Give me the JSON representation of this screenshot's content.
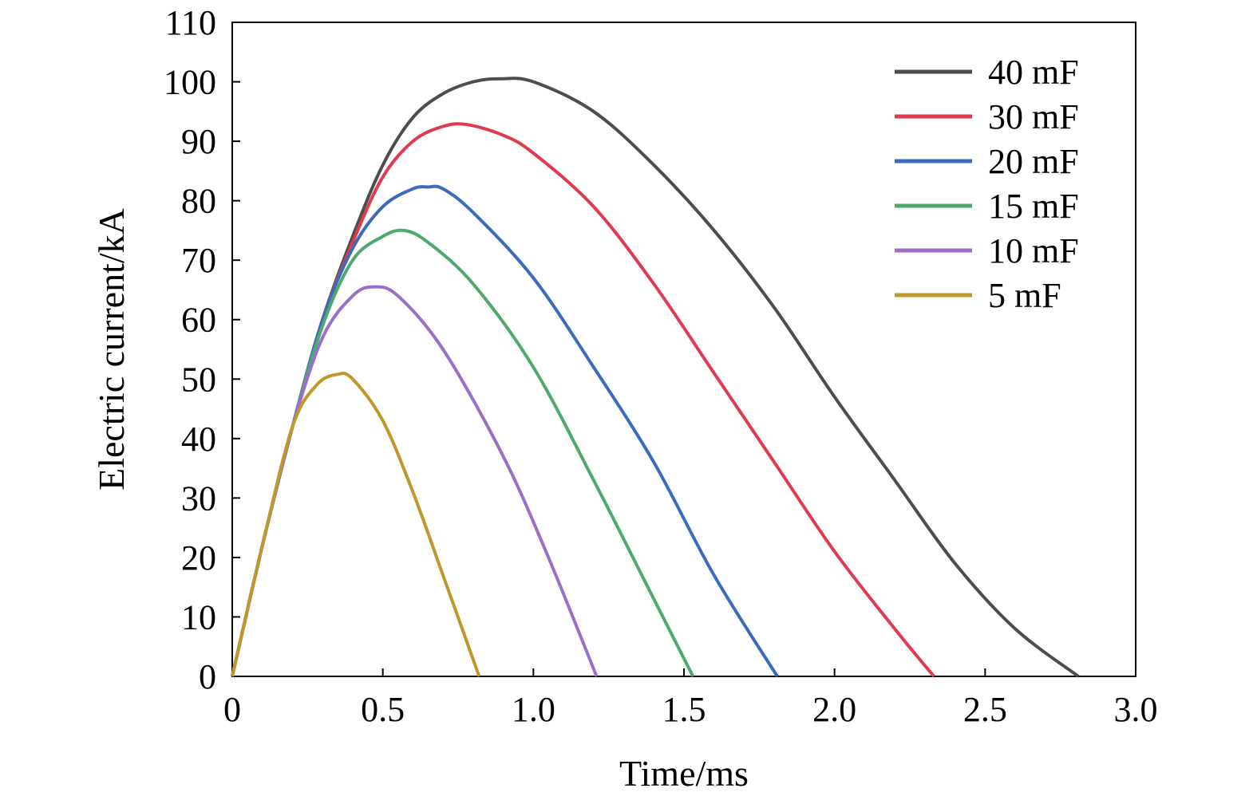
{
  "chart_data": {
    "type": "line",
    "xlabel": "Time/ms",
    "ylabel": "Electric current/kA",
    "xlim": [
      0,
      3.0
    ],
    "ylim": [
      0,
      110
    ],
    "xticks": [
      0,
      0.5,
      1.0,
      1.5,
      2.0,
      2.5,
      3.0
    ],
    "xtick_labels": [
      "0",
      "0.5",
      "1.0",
      "1.5",
      "2.0",
      "2.5",
      "3.0"
    ],
    "yticks": [
      0,
      10,
      20,
      30,
      40,
      50,
      60,
      70,
      80,
      90,
      100,
      110
    ],
    "ytick_labels": [
      "0",
      "10",
      "20",
      "30",
      "40",
      "50",
      "60",
      "70",
      "80",
      "90",
      "100",
      "110"
    ],
    "grid": false,
    "legend_position": "top-right",
    "series": [
      {
        "name": "40 mF",
        "color": "#4d4d4f",
        "points": [
          [
            0,
            0
          ],
          [
            0.1,
            22
          ],
          [
            0.2,
            42
          ],
          [
            0.3,
            60
          ],
          [
            0.4,
            74
          ],
          [
            0.5,
            86
          ],
          [
            0.6,
            94
          ],
          [
            0.7,
            98
          ],
          [
            0.8,
            100
          ],
          [
            0.89,
            100.5
          ],
          [
            1.0,
            100
          ],
          [
            1.2,
            95
          ],
          [
            1.4,
            86
          ],
          [
            1.6,
            75
          ],
          [
            1.8,
            62
          ],
          [
            2.0,
            47
          ],
          [
            2.2,
            33
          ],
          [
            2.4,
            19
          ],
          [
            2.6,
            8
          ],
          [
            2.81,
            0
          ]
        ]
      },
      {
        "name": "30 mF",
        "color": "#e03a4f",
        "points": [
          [
            0,
            0
          ],
          [
            0.1,
            22
          ],
          [
            0.2,
            42
          ],
          [
            0.3,
            60
          ],
          [
            0.4,
            73
          ],
          [
            0.5,
            84
          ],
          [
            0.6,
            90
          ],
          [
            0.7,
            92.5
          ],
          [
            0.78,
            92.8
          ],
          [
            0.9,
            91
          ],
          [
            1.0,
            88
          ],
          [
            1.2,
            79
          ],
          [
            1.4,
            66
          ],
          [
            1.6,
            51
          ],
          [
            1.8,
            36
          ],
          [
            2.0,
            21
          ],
          [
            2.2,
            8
          ],
          [
            2.33,
            0
          ]
        ]
      },
      {
        "name": "20 mF",
        "color": "#3b6bbd",
        "points": [
          [
            0,
            0
          ],
          [
            0.1,
            22
          ],
          [
            0.2,
            42
          ],
          [
            0.3,
            60
          ],
          [
            0.4,
            72
          ],
          [
            0.5,
            79
          ],
          [
            0.6,
            82
          ],
          [
            0.65,
            82.3
          ],
          [
            0.7,
            82
          ],
          [
            0.8,
            78
          ],
          [
            1.0,
            67
          ],
          [
            1.2,
            52
          ],
          [
            1.4,
            36
          ],
          [
            1.6,
            17
          ],
          [
            1.81,
            0
          ]
        ]
      },
      {
        "name": "15 mF",
        "color": "#4ea96c",
        "points": [
          [
            0,
            0
          ],
          [
            0.1,
            22
          ],
          [
            0.2,
            42
          ],
          [
            0.3,
            59
          ],
          [
            0.4,
            70
          ],
          [
            0.5,
            74
          ],
          [
            0.57,
            75
          ],
          [
            0.65,
            73
          ],
          [
            0.8,
            66
          ],
          [
            1.0,
            52
          ],
          [
            1.2,
            33
          ],
          [
            1.4,
            13
          ],
          [
            1.53,
            0
          ]
        ]
      },
      {
        "name": "10 mF",
        "color": "#9a6fc8",
        "points": [
          [
            0,
            0
          ],
          [
            0.1,
            22
          ],
          [
            0.2,
            42
          ],
          [
            0.3,
            57
          ],
          [
            0.4,
            64
          ],
          [
            0.47,
            65.5
          ],
          [
            0.55,
            64
          ],
          [
            0.7,
            55
          ],
          [
            0.9,
            37
          ],
          [
            1.05,
            20
          ],
          [
            1.21,
            0
          ]
        ]
      },
      {
        "name": "5 mF",
        "color": "#c0972a",
        "points": [
          [
            0,
            0
          ],
          [
            0.1,
            22
          ],
          [
            0.2,
            42
          ],
          [
            0.28,
            49
          ],
          [
            0.35,
            50.8
          ],
          [
            0.4,
            50
          ],
          [
            0.5,
            43
          ],
          [
            0.6,
            31
          ],
          [
            0.7,
            17
          ],
          [
            0.82,
            0
          ]
        ]
      }
    ]
  }
}
